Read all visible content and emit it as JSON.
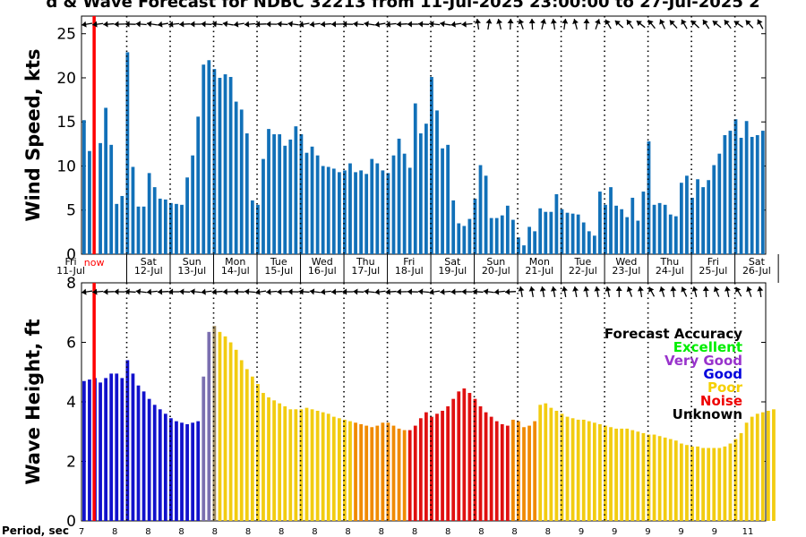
{
  "header": {
    "title": "d & Wave Forecast for NDBC 32213 from 11-Jul-2025 23:00:00 to 27-Jul-2025 2"
  },
  "wind": {
    "ylabel": "Wind Speed, kts",
    "ylim": [
      0,
      27
    ],
    "yticks": [
      "0",
      "5",
      "10",
      "15",
      "20",
      "25"
    ]
  },
  "wave": {
    "ylabel": "Wave Height, ft",
    "ylim": [
      0,
      8
    ],
    "yticks": [
      "0",
      "2",
      "4",
      "6",
      "8"
    ]
  },
  "days": [
    {
      "dow": "Fri",
      "date": "11-Jul"
    },
    {
      "dow": "Sat",
      "date": "12-Jul"
    },
    {
      "dow": "Sun",
      "date": "13-Jul"
    },
    {
      "dow": "Mon",
      "date": "14-Jul"
    },
    {
      "dow": "Tue",
      "date": "15-Jul"
    },
    {
      "dow": "Wed",
      "date": "16-Jul"
    },
    {
      "dow": "Thu",
      "date": "17-Jul"
    },
    {
      "dow": "Fri",
      "date": "18-Jul"
    },
    {
      "dow": "Sat",
      "date": "19-Jul"
    },
    {
      "dow": "Sun",
      "date": "20-Jul"
    },
    {
      "dow": "Mon",
      "date": "21-Jul"
    },
    {
      "dow": "Tue",
      "date": "22-Jul"
    },
    {
      "dow": "Wed",
      "date": "23-Jul"
    },
    {
      "dow": "Thu",
      "date": "24-Jul"
    },
    {
      "dow": "Fri",
      "date": "25-Jul"
    },
    {
      "dow": "Sat",
      "date": "26-Jul"
    }
  ],
  "now_label": "now",
  "period": {
    "label": "Period, sec",
    "values": [
      "7",
      "8",
      "8",
      "8",
      "8",
      "8",
      "8",
      "8",
      "8",
      "8",
      "8",
      "8",
      "8",
      "8",
      "8",
      "9",
      "9",
      "9",
      "9",
      "9",
      "11"
    ]
  },
  "legend": {
    "title": "Forecast Accuracy",
    "items": [
      {
        "label": "Excellent",
        "color": "#00ee00"
      },
      {
        "label": "Very Good",
        "color": "#9933cc"
      },
      {
        "label": "Good",
        "color": "#0000dd"
      },
      {
        "label": "Poor",
        "color": "#f5d000"
      },
      {
        "label": "Noise",
        "color": "#ee0000"
      },
      {
        "label": "Unknown",
        "color": "#000000"
      }
    ]
  },
  "colors": {
    "wind_bar": "#1170b8",
    "now_line": "#ff0000",
    "wave_blue": "#1111cc",
    "wave_purple": "#7a6fb0",
    "wave_yellow": "#f2cc10",
    "wave_orange": "#f08a00",
    "wave_red": "#e01010",
    "wave_olive": "#a08c60"
  },
  "chart_data": [
    {
      "type": "bar",
      "name": "wind",
      "x_start": "11-Jul-2025 23:00",
      "step_hours": 3,
      "ylabel": "Wind Speed, kts",
      "ylim": [
        0,
        27
      ],
      "values": [
        15.2,
        11.7,
        0,
        12.6,
        16.6,
        12.4,
        5.7,
        6.6,
        22.9,
        9.9,
        5.4,
        5.4,
        9.2,
        7.6,
        6.3,
        6.2,
        5.8,
        5.7,
        5.6,
        8.7,
        11.2,
        15.6,
        21.5,
        22,
        21,
        20,
        20.4,
        20.1,
        17.3,
        16.4,
        13.7,
        6.1,
        5.6,
        10.8,
        14.2,
        13.6,
        13.6,
        12.3,
        13,
        14.5,
        13.6,
        11.5,
        12.2,
        11.2,
        10,
        9.9,
        9.7,
        9.3,
        9.5,
        10.3,
        9.3,
        9.5,
        9.1,
        10.8,
        10.3,
        9.5,
        9.2,
        11.2,
        13.1,
        11.4,
        9.8,
        17.1,
        13.7,
        14.8,
        20.1,
        16.3,
        12,
        12.4,
        6.1,
        3.5,
        3.2,
        4,
        6.3,
        10.1,
        8.9,
        4.1,
        4.1,
        4.4,
        5.5,
        3.9,
        1.9,
        1,
        3.1,
        2.6,
        5.2,
        4.8,
        4.8,
        6.8,
        5.1,
        4.7,
        4.6,
        4.5,
        3.6,
        2.6,
        2.1,
        7.1,
        5.6,
        7.6,
        5.5,
        5.1,
        4.2,
        6.4,
        3.8,
        7.1,
        12.8,
        5.6,
        5.8,
        5.6,
        4.5,
        4.3,
        8.1,
        8.9,
        6.4,
        8.5,
        7.6,
        8.4,
        10.1,
        11.4,
        13.5,
        14,
        15.3,
        13.2,
        15.1,
        13.3,
        13.5,
        14
      ]
    },
    {
      "type": "bar",
      "name": "wave",
      "x_start": "11-Jul-2025 23:00",
      "step_hours": 3,
      "ylabel": "Wave Height, ft",
      "ylim": [
        0,
        8
      ],
      "values": [
        4.7,
        4.75,
        4.8,
        4.65,
        4.8,
        4.95,
        4.95,
        4.8,
        5.4,
        4.95,
        4.55,
        4.35,
        4.1,
        3.9,
        3.75,
        3.6,
        3.45,
        3.35,
        3.3,
        3.25,
        3.3,
        3.35,
        4.85,
        6.35,
        6.55,
        6.35,
        6.2,
        6,
        5.75,
        5.4,
        5.1,
        4.85,
        4.6,
        4.3,
        4.15,
        4.05,
        3.95,
        3.85,
        3.75,
        3.75,
        3.75,
        3.8,
        3.75,
        3.7,
        3.65,
        3.6,
        3.5,
        3.45,
        3.4,
        3.35,
        3.3,
        3.25,
        3.2,
        3.15,
        3.2,
        3.3,
        3.3,
        3.2,
        3.1,
        3.05,
        3.05,
        3.2,
        3.45,
        3.65,
        3.5,
        3.6,
        3.7,
        3.85,
        4.1,
        4.35,
        4.45,
        4.3,
        4.1,
        3.85,
        3.65,
        3.5,
        3.35,
        3.25,
        3.2,
        3.4,
        3.35,
        3.15,
        3.2,
        3.35,
        3.9,
        3.95,
        3.8,
        3.7,
        3.6,
        3.5,
        3.45,
        3.4,
        3.4,
        3.35,
        3.3,
        3.25,
        3.2,
        3.15,
        3.1,
        3.1,
        3.1,
        3.05,
        3,
        2.95,
        2.9,
        2.9,
        2.85,
        2.8,
        2.75,
        2.7,
        2.6,
        2.55,
        2.5,
        2.5,
        2.45,
        2.45,
        2.45,
        2.45,
        2.5,
        2.6,
        2.75,
        2.95,
        3.3,
        3.5,
        3.6,
        3.65,
        3.7,
        3.75
      ],
      "accuracy": [
        "Good",
        "Good",
        "Good",
        "Good",
        "Good",
        "Good",
        "Good",
        "Good",
        "Good",
        "Good",
        "Good",
        "Good",
        "Good",
        "Good",
        "Good",
        "Good",
        "Good",
        "Good",
        "Good",
        "Good",
        "Good",
        "Good",
        "Very Good",
        "Very Good",
        "Poor",
        "Poor",
        "Poor",
        "Poor",
        "Poor",
        "Poor",
        "Poor",
        "Poor",
        "Poor",
        "Poor",
        "Poor",
        "Poor",
        "Poor",
        "Poor",
        "Poor",
        "Poor",
        "Poor",
        "Poor",
        "Poor",
        "Poor",
        "Poor",
        "Poor",
        "Poor",
        "Poor",
        "Poor",
        "Poor",
        "Poor",
        "Poor",
        "Poor",
        "Poor",
        "Poor",
        "Poor",
        "Poor",
        "Noise",
        "Noise",
        "Noise",
        "Noise",
        "Noise",
        "Noise",
        "Noise",
        "Noise",
        "Noise",
        "Noise",
        "Noise",
        "Noise",
        "Noise",
        "Noise",
        "Noise",
        "Noise",
        "Noise",
        "Noise",
        "Noise",
        "Noise",
        "Noise",
        "Noise",
        "Noise",
        "Noise",
        "Noise",
        "Noise",
        "Noise",
        "Poor",
        "Poor",
        "Poor",
        "Poor",
        "Poor",
        "Poor",
        "Poor",
        "Poor",
        "Poor",
        "Poor",
        "Poor",
        "Poor",
        "Poor",
        "Poor",
        "Poor",
        "Poor",
        "Poor",
        "Poor",
        "Poor",
        "Poor",
        "Poor",
        "Poor",
        "Poor",
        "Poor",
        "Poor",
        "Poor",
        "Poor",
        "Poor",
        "Poor",
        "Poor",
        "Poor",
        "Poor",
        "Poor",
        "Poor",
        "Poor",
        "Poor",
        "Poor",
        "Poor",
        "Poor",
        "Poor",
        "Poor",
        "Poor",
        "Poor",
        "Poor"
      ]
    }
  ]
}
